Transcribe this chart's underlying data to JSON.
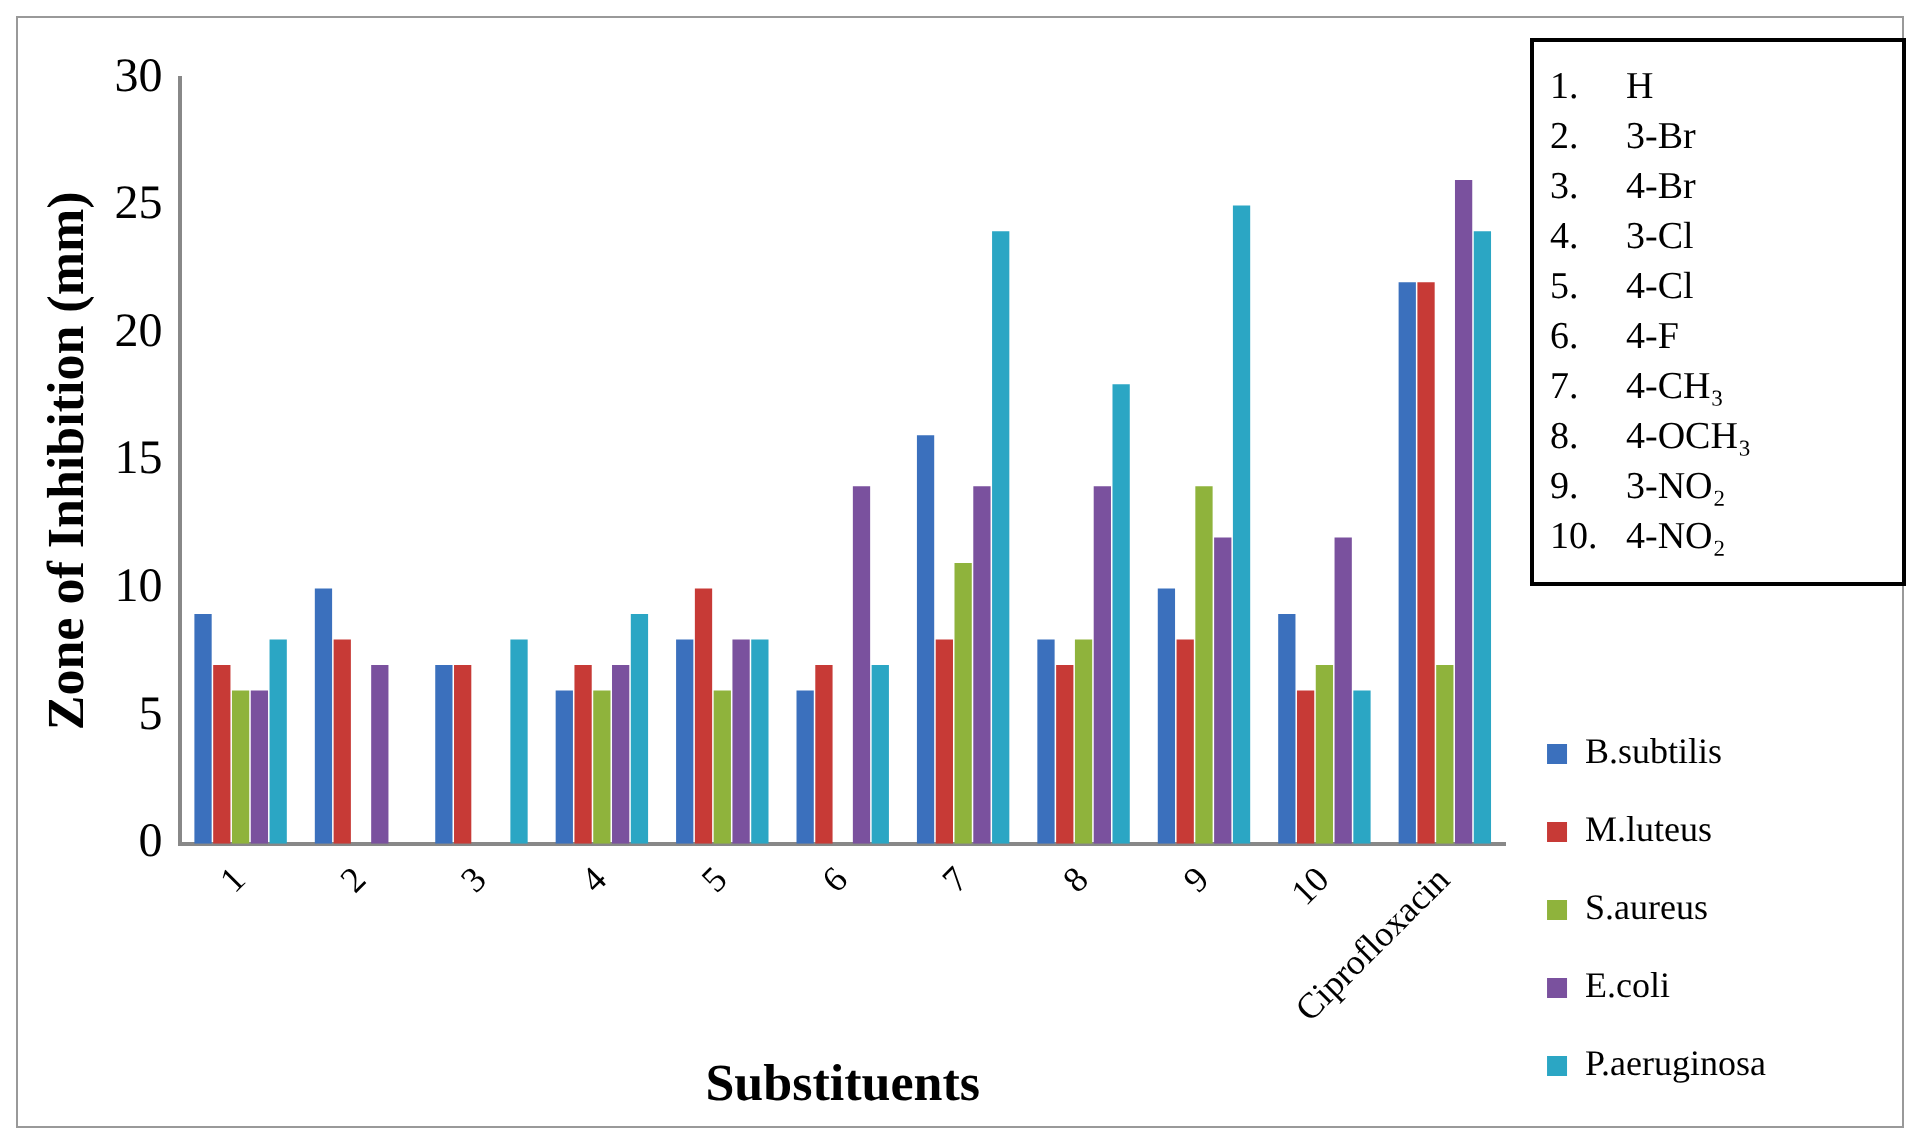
{
  "chart_data": {
    "type": "bar",
    "xlabel": "Substituents",
    "ylabel": "Zone of Inhibition (mm)",
    "categories": [
      "1",
      "2",
      "3",
      "4",
      "5",
      "6",
      "7",
      "8",
      "9",
      "10",
      "Ciprofloxacin"
    ],
    "series": [
      {
        "name": "B.subtilis",
        "color": "#3b70bd",
        "values": [
          9,
          10,
          7,
          6,
          8,
          6,
          16,
          8,
          10,
          9,
          22
        ]
      },
      {
        "name": "M.luteus",
        "color": "#c73a36",
        "values": [
          7,
          8,
          7,
          7,
          10,
          7,
          8,
          7,
          8,
          6,
          22
        ]
      },
      {
        "name": "S.aureus",
        "color": "#8fb33c",
        "values": [
          6,
          null,
          null,
          6,
          6,
          null,
          11,
          8,
          14,
          7,
          7
        ]
      },
      {
        "name": "E.coli",
        "color": "#7a519e",
        "values": [
          6,
          7,
          null,
          7,
          8,
          14,
          14,
          14,
          12,
          12,
          26
        ]
      },
      {
        "name": "P.aeruginosa",
        "color": "#2ba6c4",
        "values": [
          8,
          null,
          8,
          9,
          8,
          7,
          24,
          18,
          25,
          6,
          24
        ]
      }
    ],
    "ylim": [
      0,
      30
    ],
    "yticks": [
      0,
      5,
      10,
      15,
      20,
      25,
      30
    ],
    "grid": false,
    "legend": "right",
    "annotations": [
      "1.     H",
      "2.     3-Br",
      "3.     4-Br",
      "4.     3-Cl",
      "5.     4-Cl",
      "6.     4-F",
      "7.     4-CH₃",
      "8.     4-OCH₃",
      "9.     3-NO₂",
      "10.   4-NO₂"
    ]
  }
}
